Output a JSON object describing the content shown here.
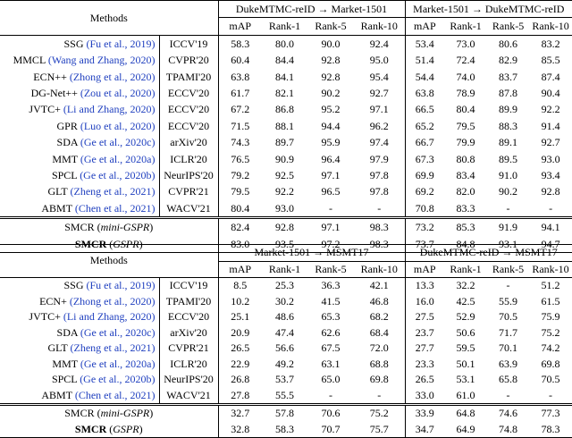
{
  "tables": [
    {
      "methods_header": "Methods",
      "group_headers": [
        "DukeMTMC-reID → Market-1501",
        "Market-1501 → DukeMTMC-reID"
      ],
      "col_headers": [
        "mAP",
        "Rank-1",
        "Rank-5",
        "Rank-10",
        "mAP",
        "Rank-1",
        "Rank-5",
        "Rank-10"
      ],
      "rows": [
        {
          "name": "SSG",
          "cite": "(Fu et al., 2019)",
          "venue": "ICCV'19",
          "v": [
            "58.3",
            "80.0",
            "90.0",
            "92.4",
            "53.4",
            "73.0",
            "80.6",
            "83.2"
          ]
        },
        {
          "name": "MMCL",
          "cite": "(Wang and Zhang, 2020)",
          "venue": "CVPR'20",
          "v": [
            "60.4",
            "84.4",
            "92.8",
            "95.0",
            "51.4",
            "72.4",
            "82.9",
            "85.5"
          ]
        },
        {
          "name": "ECN++",
          "cite": "(Zhong et al., 2020)",
          "venue": "TPAMI'20",
          "v": [
            "63.8",
            "84.1",
            "92.8",
            "95.4",
            "54.4",
            "74.0",
            "83.7",
            "87.4"
          ]
        },
        {
          "name": "DG-Net++",
          "cite": "(Zou et al., 2020)",
          "venue": "ECCV'20",
          "v": [
            "61.7",
            "82.1",
            "90.2",
            "92.7",
            "63.8",
            "78.9",
            "87.8",
            "90.4"
          ]
        },
        {
          "name": "JVTC+",
          "cite": "(Li and Zhang, 2020)",
          "venue": "ECCV'20",
          "v": [
            "67.2",
            "86.8",
            "95.2",
            "97.1",
            "66.5",
            "80.4",
            "89.9",
            "92.2"
          ]
        },
        {
          "name": "GPR",
          "cite": "(Luo et al., 2020)",
          "venue": "ECCV'20",
          "v": [
            "71.5",
            "88.1",
            "94.4",
            "96.2",
            "65.2",
            "79.5",
            "88.3",
            "91.4"
          ]
        },
        {
          "name": "SDA",
          "cite": "(Ge et al., 2020c)",
          "venue": "arXiv'20",
          "v": [
            "74.3",
            "89.7",
            "95.9",
            "97.4",
            "66.7",
            "79.9",
            "89.1",
            "92.7"
          ]
        },
        {
          "name": "MMT",
          "cite": "(Ge et al., 2020a)",
          "venue": "ICLR'20",
          "v": [
            "76.5",
            "90.9",
            "96.4",
            "97.9",
            "67.3",
            "80.8",
            "89.5",
            "93.0"
          ]
        },
        {
          "name": "SPCL",
          "cite": "(Ge et al., 2020b)",
          "venue": "NeurIPS'20",
          "v": [
            "79.2",
            "92.5",
            "97.1",
            "97.8",
            "69.9",
            "83.4",
            "91.0",
            "93.4"
          ]
        },
        {
          "name": "GLT",
          "cite": "(Zheng et al., 2021)",
          "venue": "CVPR'21",
          "v": [
            "79.5",
            "92.2",
            "96.5",
            "97.8",
            "69.2",
            "82.0",
            "90.2",
            "92.8"
          ]
        },
        {
          "name": "ABMT",
          "cite": "(Chen et al., 2021)",
          "venue": "WACV'21",
          "v": [
            "80.4",
            "93.0",
            "-",
            "-",
            "70.8",
            "83.3",
            "-",
            "-"
          ]
        }
      ],
      "ours": [
        {
          "name": "SMCR",
          "variant": "mini-GSPR",
          "v": [
            "82.4",
            "92.8",
            "97.1",
            "98.3",
            "73.2",
            "85.3",
            "91.9",
            "94.1"
          ],
          "bold": [
            false,
            false,
            false,
            true,
            false,
            true,
            false,
            false
          ]
        },
        {
          "name": "SMCR",
          "variant": "GSPR",
          "v": [
            "83.0",
            "93.5",
            "97.2",
            "98.3",
            "73.7",
            "84.8",
            "93.1",
            "94.7"
          ],
          "bold": [
            true,
            true,
            true,
            true,
            true,
            false,
            true,
            true
          ]
        }
      ]
    },
    {
      "methods_header": "Methods",
      "group_headers": [
        "Market-1501 → MSMT17",
        "DukeMTMC-reID → MSMT17"
      ],
      "col_headers": [
        "mAP",
        "Rank-1",
        "Rank-5",
        "Rank-10",
        "mAP",
        "Rank-1",
        "Rank-5",
        "Rank-10"
      ],
      "rows": [
        {
          "name": "SSG",
          "cite": "(Fu et al., 2019)",
          "venue": "ICCV'19",
          "v": [
            "8.5",
            "25.3",
            "36.3",
            "42.1",
            "13.3",
            "32.2",
            "-",
            "51.2"
          ]
        },
        {
          "name": "ECN+",
          "cite": "(Zhong et al., 2020)",
          "venue": "TPAMI'20",
          "v": [
            "10.2",
            "30.2",
            "41.5",
            "46.8",
            "16.0",
            "42.5",
            "55.9",
            "61.5"
          ]
        },
        {
          "name": "JVTC+",
          "cite": "(Li and Zhang, 2020)",
          "venue": "ECCV'20",
          "v": [
            "25.1",
            "48.6",
            "65.3",
            "68.2",
            "27.5",
            "52.9",
            "70.5",
            "75.9"
          ]
        },
        {
          "name": "SDA",
          "cite": "(Ge et al., 2020c)",
          "venue": "arXiv'20",
          "v": [
            "20.9",
            "47.4",
            "62.6",
            "68.4",
            "23.7",
            "50.6",
            "71.7",
            "75.2"
          ]
        },
        {
          "name": "GLT",
          "cite": "(Zheng et al., 2021)",
          "venue": "CVPR'21",
          "v": [
            "26.5",
            "56.6",
            "67.5",
            "72.0",
            "27.7",
            "59.5",
            "70.1",
            "74.2"
          ]
        },
        {
          "name": "MMT",
          "cite": "(Ge et al., 2020a)",
          "venue": "ICLR'20",
          "v": [
            "22.9",
            "49.2",
            "63.1",
            "68.8",
            "23.3",
            "50.1",
            "63.9",
            "69.8"
          ]
        },
        {
          "name": "SPCL",
          "cite": "(Ge et al., 2020b)",
          "venue": "NeurIPS'20",
          "v": [
            "26.8",
            "53.7",
            "65.0",
            "69.8",
            "26.5",
            "53.1",
            "65.8",
            "70.5"
          ]
        },
        {
          "name": "ABMT",
          "cite": "(Chen et al., 2021)",
          "venue": "WACV'21",
          "v": [
            "27.8",
            "55.5",
            "-",
            "-",
            "33.0",
            "61.0",
            "-",
            "-"
          ]
        }
      ],
      "ours": [
        {
          "name": "SMCR",
          "variant": "mini-GSPR",
          "v": [
            "32.7",
            "57.8",
            "70.6",
            "75.2",
            "33.9",
            "64.8",
            "74.6",
            "77.3"
          ],
          "bold": [
            false,
            false,
            false,
            false,
            false,
            false,
            false,
            false
          ]
        },
        {
          "name": "SMCR",
          "variant": "GSPR",
          "v": [
            "32.8",
            "58.3",
            "70.7",
            "75.7",
            "34.7",
            "64.9",
            "74.8",
            "78.3"
          ],
          "bold": [
            true,
            true,
            true,
            true,
            true,
            true,
            true,
            true
          ]
        }
      ]
    }
  ]
}
